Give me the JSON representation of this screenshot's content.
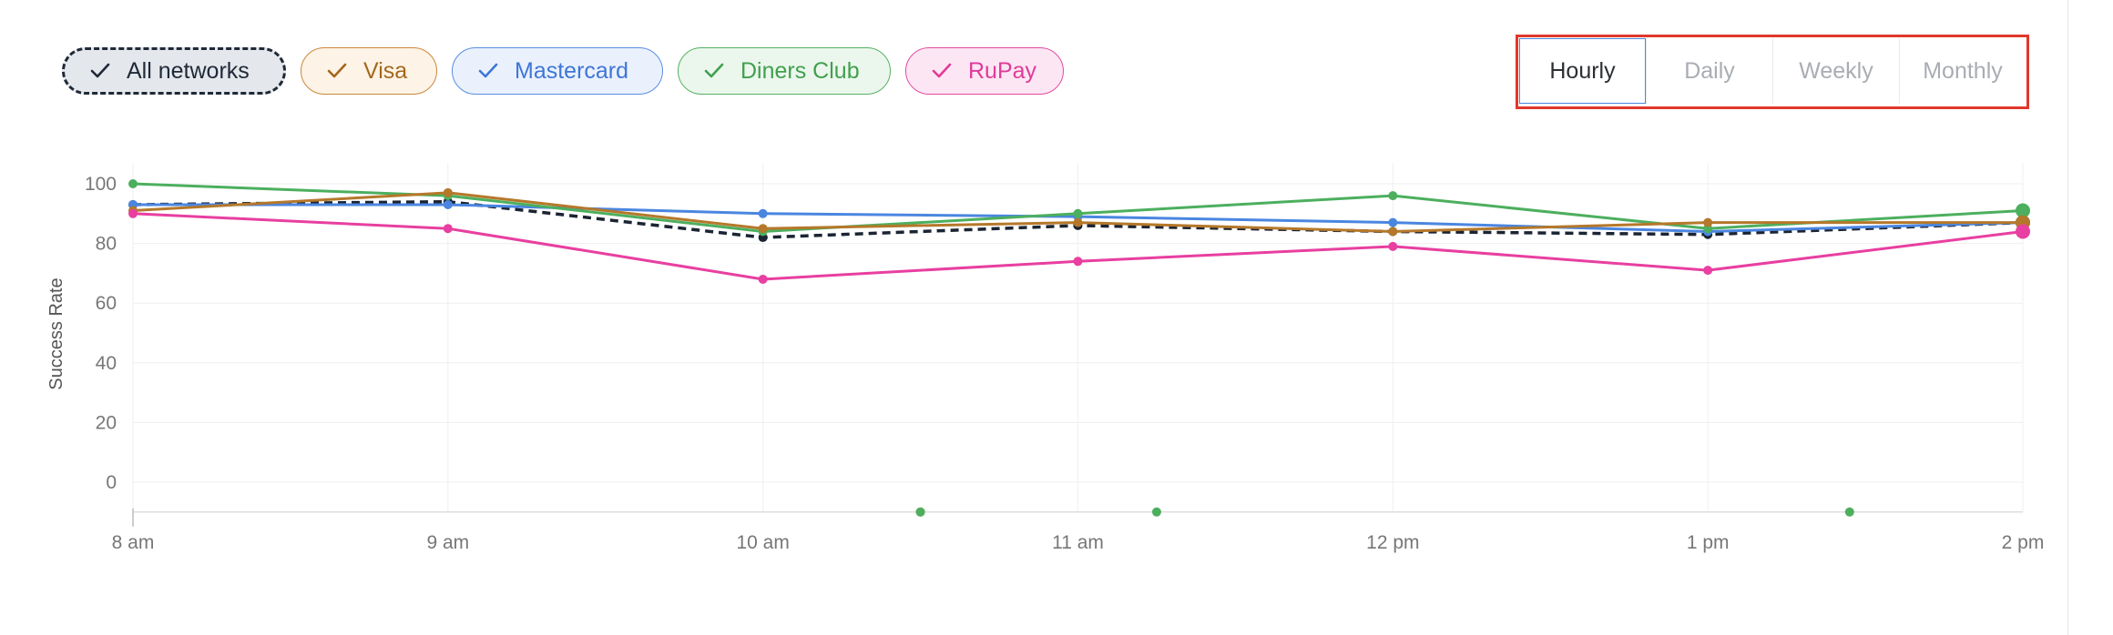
{
  "filters": {
    "all_label": "All networks",
    "visa_label": "Visa",
    "mastercard_label": "Mastercard",
    "diners_label": "Diners Club",
    "rupay_label": "RuPay"
  },
  "range_tabs": {
    "hourly": "Hourly",
    "daily": "Daily",
    "weekly": "Weekly",
    "monthly": "Monthly",
    "active": "hourly"
  },
  "colors": {
    "all": "#1b2433",
    "visa": "#b5782a",
    "mastercard": "#4a86e0",
    "diners": "#4caf5e",
    "rupay": "#e83fa0",
    "highlight": "#e0382b"
  },
  "chart_data": {
    "type": "line",
    "ylabel": "Success Rate",
    "xlabel": "",
    "categories": [
      "8 am",
      "9 am",
      "10 am",
      "11 am",
      "12 pm",
      "1 pm",
      "2 pm"
    ],
    "yticks": [
      0,
      20,
      40,
      60,
      80,
      100
    ],
    "ylim": [
      -10,
      110
    ],
    "grid": true,
    "series": [
      {
        "name": "All networks",
        "color": "#1b2433",
        "dashed": true,
        "values": [
          93,
          94,
          82,
          86,
          84,
          83,
          87
        ]
      },
      {
        "name": "Mastercard",
        "color": "#4a86e0",
        "dashed": false,
        "values": [
          93,
          93,
          90,
          89,
          87,
          84,
          87
        ]
      },
      {
        "name": "Diners Club",
        "color": "#4caf5e",
        "dashed": false,
        "values": [
          100,
          96,
          84,
          90,
          96,
          85,
          91
        ]
      },
      {
        "name": "Visa",
        "color": "#b5782a",
        "dashed": false,
        "values": [
          91,
          97,
          85,
          87,
          84,
          87,
          87
        ]
      },
      {
        "name": "RuPay",
        "color": "#e83fa0",
        "dashed": false,
        "values": [
          90,
          85,
          68,
          74,
          79,
          71,
          84
        ]
      }
    ],
    "baseline_markers": [
      {
        "x": 2.5,
        "series": "Visa",
        "color": "#b5782a"
      },
      {
        "x": 2.5,
        "series": "Diners Club",
        "color": "#4caf5e"
      },
      {
        "x": 3.25,
        "series": "Diners Club",
        "color": "#4caf5e"
      },
      {
        "x": 5.45,
        "series": "Diners Club",
        "color": "#4caf5e"
      }
    ]
  }
}
